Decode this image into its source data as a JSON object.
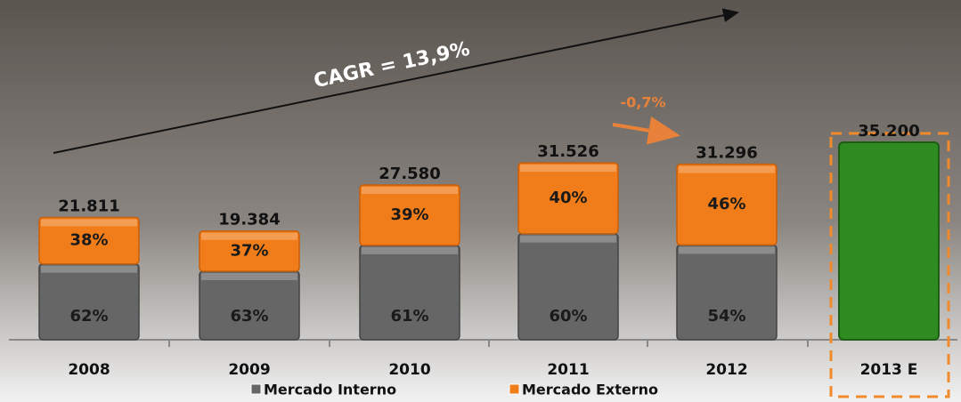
{
  "chart_data": {
    "type": "stacked_bar",
    "annotations": [
      "CAGR = 13,9%",
      "-0,7%"
    ],
    "categories": [
      "2008",
      "2009",
      "2010",
      "2011",
      "2012",
      "2013 E"
    ],
    "totals": {
      "values": [
        21811,
        19384,
        27580,
        31526,
        31296,
        35200
      ],
      "value_labels": [
        "21.811",
        "19.384",
        "27.580",
        "31.526",
        "31.296",
        "35.200"
      ]
    },
    "estimate_color": "#2e8b1f",
    "series": [
      {
        "name": "Mercado Interno",
        "color": "#666666",
        "values": [
          62,
          63,
          61,
          60,
          54,
          null
        ],
        "value_labels": [
          "62%",
          "63%",
          "61%",
          "60%",
          "54%",
          null
        ]
      },
      {
        "name": "Mercado Externo",
        "color": "#f07d19",
        "values": [
          38,
          37,
          39,
          40,
          46,
          null
        ],
        "value_labels": [
          "38%",
          "37%",
          "39%",
          "40%",
          "46%",
          null
        ]
      }
    ]
  }
}
